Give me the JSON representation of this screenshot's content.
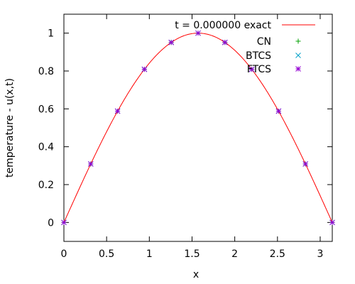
{
  "chart_data": {
    "type": "line",
    "xlabel": "x",
    "ylabel": "temperature - u(x,t)",
    "xlim": [
      0,
      3.14159
    ],
    "ylim": [
      -0.1,
      1.1
    ],
    "grid": false,
    "legend_position": "top-right",
    "x_ticks": [
      0,
      0.5,
      1,
      1.5,
      2,
      2.5,
      3
    ],
    "x_tick_labels": [
      "0",
      "0.5",
      "1",
      "1.5",
      "2",
      "2.5",
      "3"
    ],
    "y_ticks": [
      0,
      0.2,
      0.4,
      0.6,
      0.8,
      1
    ],
    "y_tick_labels": [
      "0",
      "0.2",
      "0.4",
      "0.6",
      "0.8",
      "1"
    ],
    "series": [
      {
        "name": "t = 0.000000 exact",
        "style": "line",
        "color": "#ff0000",
        "function": "sin(x)",
        "x": [
          0,
          0.31416,
          0.62832,
          0.94248,
          1.25664,
          1.5708,
          1.88496,
          2.19911,
          2.51327,
          2.82743,
          3.14159
        ],
        "y": [
          0,
          0.309,
          0.588,
          0.809,
          0.951,
          1.0,
          0.951,
          0.809,
          0.588,
          0.309,
          0
        ]
      },
      {
        "name": "CN",
        "style": "points",
        "marker": "plus",
        "color": "#00a000",
        "x": [
          0,
          0.31416,
          0.62832,
          0.94248,
          1.25664,
          1.5708,
          1.88496,
          2.19911,
          2.51327,
          2.82743,
          3.14159
        ],
        "y": [
          0,
          0.309,
          0.588,
          0.809,
          0.951,
          1.0,
          0.951,
          0.809,
          0.588,
          0.309,
          0
        ]
      },
      {
        "name": "BTCS",
        "style": "points",
        "marker": "cross",
        "color": "#00a0c8",
        "x": [
          0,
          0.31416,
          0.62832,
          0.94248,
          1.25664,
          1.5708,
          1.88496,
          2.19911,
          2.51327,
          2.82743,
          3.14159
        ],
        "y": [
          0,
          0.309,
          0.588,
          0.809,
          0.951,
          1.0,
          0.951,
          0.809,
          0.588,
          0.309,
          0
        ]
      },
      {
        "name": "FTCS",
        "style": "points",
        "marker": "star",
        "color": "#9400d3",
        "x": [
          0,
          0.31416,
          0.62832,
          0.94248,
          1.25664,
          1.5708,
          1.88496,
          2.19911,
          2.51327,
          2.82743,
          3.14159
        ],
        "y": [
          0,
          0.309,
          0.588,
          0.809,
          0.951,
          1.0,
          0.951,
          0.809,
          0.588,
          0.309,
          0
        ]
      }
    ]
  }
}
